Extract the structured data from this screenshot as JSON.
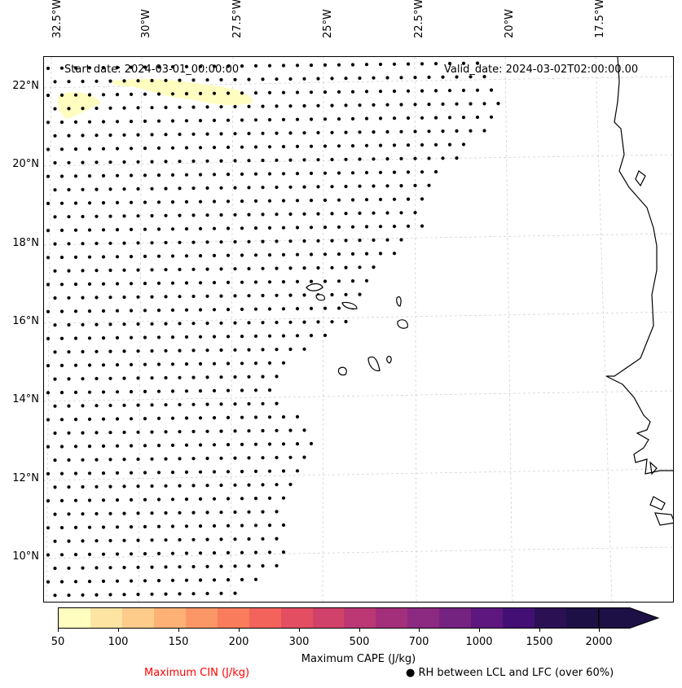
{
  "figure": {
    "start_label": "Start date: 2024-03-01_00:00:00",
    "valid_label": "Valid_date: 2024-03-02T02:00:00.00"
  },
  "axes": {
    "longitude_ticks": [
      "32.5°W",
      "30°W",
      "27.5°W",
      "25°W",
      "22.5°W",
      "20°W",
      "17.5°W"
    ],
    "latitude_ticks": [
      "22°N",
      "20°N",
      "18°N",
      "16°N",
      "14°N",
      "12°N",
      "10°N"
    ]
  },
  "colorbar": {
    "title": "Maximum CAPE (J/kg)",
    "tick_labels": [
      "50",
      "100",
      "150",
      "200",
      "300",
      "500",
      "700",
      "1000",
      "1500",
      "2000"
    ],
    "colors": [
      "#fffdbf",
      "#fde4a2",
      "#fdcb8a",
      "#fdb175",
      "#fb9766",
      "#f97c5d",
      "#f3635c",
      "#e44e62",
      "#d1426b",
      "#bb3874",
      "#a32f7a",
      "#8c2981",
      "#752381",
      "#5d177f",
      "#440f75",
      "#2b1153",
      "#1c1044"
    ],
    "extend_color": "#1c1044"
  },
  "legend": {
    "cin_label": "Maximum CIN (J/kg)",
    "cin_color": "#ff0000",
    "rh_label": "● RH between LCL and LFC (over 60%)"
  }
}
